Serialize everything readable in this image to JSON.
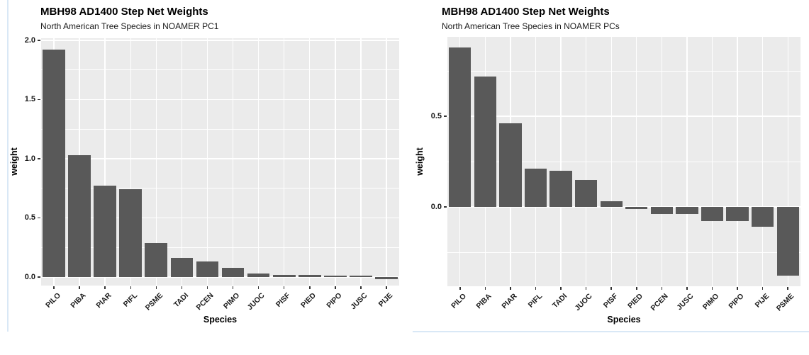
{
  "page": {
    "background": "#ffffff",
    "artifact_line_color": "#d9e8f6"
  },
  "chart_data": [
    {
      "type": "bar",
      "title": "MBH98 AD1400 Step Net Weights",
      "subtitle": "North American Tree Species in NOAMER PC1",
      "xlabel": "Species",
      "ylabel": "weight",
      "categories": [
        "PILO",
        "PIBA",
        "PIAR",
        "PIFL",
        "PSME",
        "TADI",
        "PCEN",
        "PIMO",
        "JUOC",
        "PISF",
        "PIED",
        "PIPO",
        "JUSC",
        "PIJE"
      ],
      "values": [
        1.92,
        1.03,
        0.77,
        0.74,
        0.29,
        0.16,
        0.13,
        0.08,
        0.03,
        0.02,
        0.02,
        0.01,
        0.01,
        -0.02
      ],
      "y_tick_labels": [
        "0.0",
        "0.5",
        "1.0",
        "1.5",
        "2.0"
      ],
      "y_tick_values": [
        0,
        0.5,
        1,
        1.5,
        2
      ],
      "y_minor_step": 0.25,
      "ylim": [
        -0.072,
        2.018
      ],
      "grid": true,
      "legend": "none",
      "bar_color": "#595959",
      "panel_bg": "#ebebeb",
      "grid_color": "#ffffff",
      "axis_text_color": "#1a1a1a",
      "tick_color": "#333333"
    },
    {
      "type": "bar",
      "title": "MBH98 AD1400 Step Net Weights",
      "subtitle": "North American Tree Species in NOAMER PCs",
      "xlabel": "Species",
      "ylabel": "weight",
      "categories": [
        "PILO",
        "PIBA",
        "PIAR",
        "PIFL",
        "TADI",
        "JUOC",
        "PISF",
        "PIED",
        "PCEN",
        "JUSC",
        "PIMO",
        "PIPO",
        "PIJE",
        "PSME"
      ],
      "values": [
        0.88,
        0.72,
        0.46,
        0.21,
        0.2,
        0.15,
        0.03,
        -0.01,
        -0.04,
        -0.04,
        -0.08,
        -0.08,
        -0.11,
        -0.38
      ],
      "y_tick_labels": [
        "0.0",
        "0.5"
      ],
      "y_tick_values": [
        0,
        0.5
      ],
      "y_minor_step": 0.25,
      "ylim": [
        -0.4375,
        0.9375
      ],
      "grid": true,
      "legend": "none",
      "bar_color": "#595959",
      "panel_bg": "#ebebeb",
      "grid_color": "#ffffff",
      "axis_text_color": "#1a1a1a",
      "tick_color": "#333333"
    }
  ]
}
